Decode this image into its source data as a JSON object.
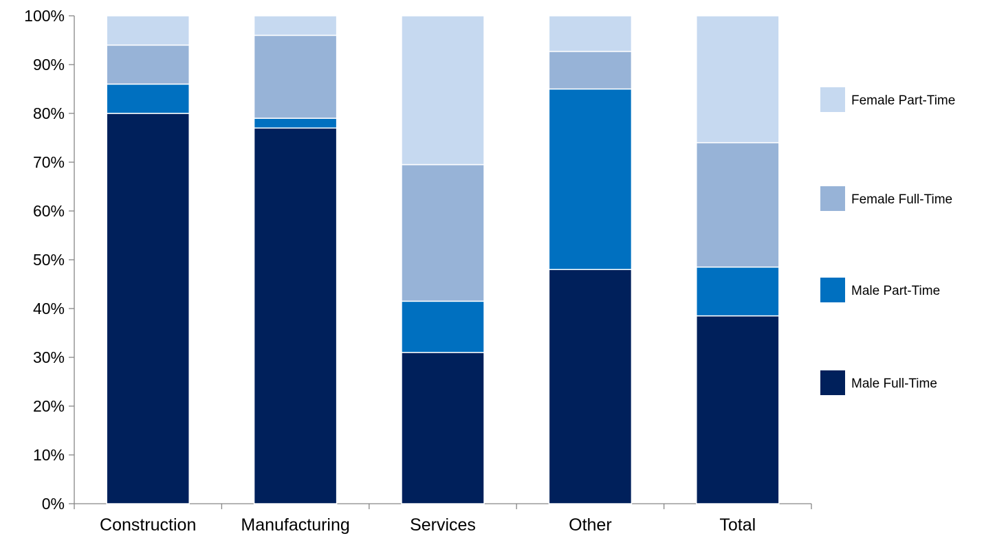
{
  "chart_data": {
    "type": "bar",
    "stacked": true,
    "categories": [
      "Construction",
      "Manufacturing",
      "Services",
      "Other",
      "Total"
    ],
    "series": [
      {
        "name": "Male Full-Time",
        "color": "#00205b",
        "values": [
          80,
          77,
          31,
          48,
          38.5
        ]
      },
      {
        "name": "Male Part-Time",
        "color": "#0070c0",
        "values": [
          6,
          2,
          10.5,
          37,
          10
        ]
      },
      {
        "name": "Female Full-Time",
        "color": "#97b3d7",
        "values": [
          8,
          17,
          28,
          7.7,
          25.5
        ]
      },
      {
        "name": "Female Part-Time",
        "color": "#c6d9f0",
        "values": [
          6,
          4,
          30.5,
          7.3,
          26
        ]
      }
    ],
    "ylim": [
      0,
      100
    ],
    "yticks": [
      "0%",
      "10%",
      "20%",
      "30%",
      "40%",
      "50%",
      "60%",
      "70%",
      "80%",
      "90%",
      "100%"
    ],
    "title": "",
    "xlabel": "",
    "ylabel": "",
    "grid": false,
    "legend_position": "right",
    "legend_order": [
      "Female Part-Time",
      "Female Full-Time",
      "Male Part-Time",
      "Male Full-Time"
    ]
  }
}
